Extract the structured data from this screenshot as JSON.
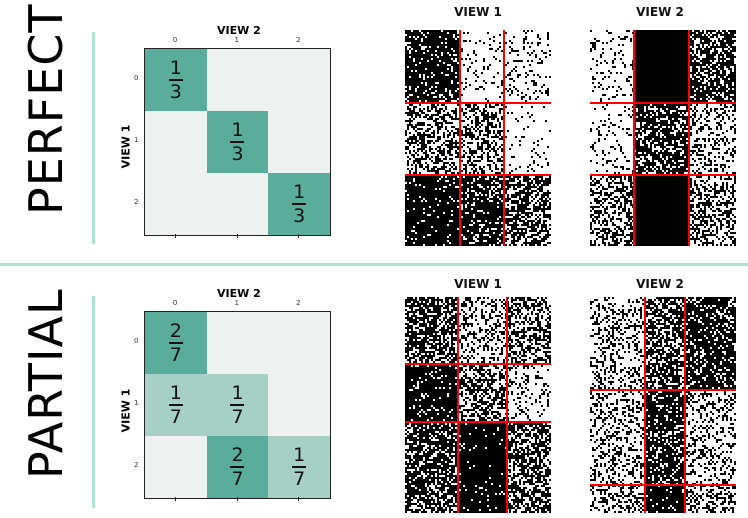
{
  "sections": [
    {
      "label": "PERFECT",
      "matrix": {
        "xlabel": "VIEW 2",
        "ylabel": "VIEW 1",
        "ticks": [
          "0",
          "1",
          "2"
        ],
        "cells": [
          [
            "1/3",
            "",
            ""
          ],
          [
            "",
            "1/3",
            ""
          ],
          [
            "",
            "",
            "1/3"
          ]
        ]
      },
      "views": [
        {
          "title": "VIEW 1",
          "densities": [
            [
              0.85,
              0.1,
              0.15
            ],
            [
              0.45,
              0.45,
              0.05
            ],
            [
              0.9,
              0.8,
              0.6
            ]
          ]
        },
        {
          "title": "VIEW 2",
          "densities": [
            [
              0.15,
              1.0,
              0.7
            ],
            [
              0.1,
              0.7,
              0.3
            ],
            [
              0.45,
              1.0,
              0.45
            ]
          ]
        }
      ]
    },
    {
      "label": "PARTIAL",
      "matrix": {
        "xlabel": "VIEW 2",
        "ylabel": "VIEW 1",
        "ticks": [
          "0",
          "1",
          "2"
        ],
        "cells": [
          [
            "2/7",
            "",
            ""
          ],
          [
            "1/7",
            "1/7",
            ""
          ],
          [
            "",
            "2/7",
            "1/7"
          ]
        ]
      },
      "views": [
        {
          "title": "VIEW 1",
          "densities": [
            [
              0.65,
              0.3,
              0.5
            ],
            [
              0.9,
              0.5,
              0.2
            ],
            [
              0.7,
              0.95,
              0.6
            ]
          ]
        },
        {
          "title": "VIEW 2",
          "densities": [
            [
              0.3,
              0.6,
              0.8
            ],
            [
              0.3,
              0.8,
              0.3
            ],
            [
              0.35,
              0.9,
              0.45
            ]
          ]
        }
      ]
    }
  ],
  "colors": {
    "strong": "#5aad9a",
    "weak": "#a6cfc5",
    "empty": "#edf2f0",
    "separator": "#a8e6cf",
    "grid_line": "#ff0000"
  }
}
